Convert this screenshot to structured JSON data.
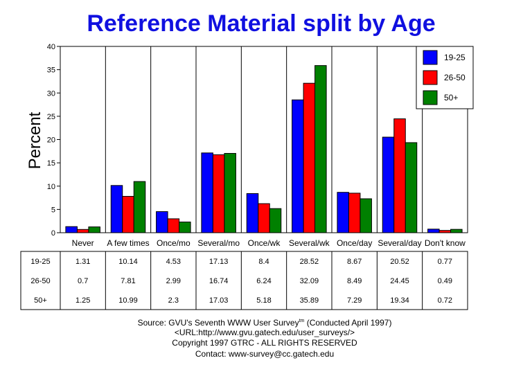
{
  "chart_data": {
    "type": "bar",
    "title": "Reference Material split by Age",
    "ylabel": "Percent",
    "xlabel": "",
    "ylim": [
      0,
      40
    ],
    "yticks": [
      0,
      5,
      10,
      15,
      20,
      25,
      30,
      35,
      40
    ],
    "grid": "vertical category separators",
    "legend_position": "top-right",
    "categories": [
      "Never",
      "A few times",
      "Once/mo",
      "Several/mo",
      "Once/wk",
      "Several/wk",
      "Once/day",
      "Several/day",
      "Don't know"
    ],
    "series": [
      {
        "name": "19-25",
        "color": "#0000ff",
        "values": [
          1.31,
          10.14,
          4.53,
          17.13,
          8.4,
          28.52,
          8.67,
          20.52,
          0.77
        ],
        "labels": [
          "1.31",
          "10.14",
          "4.53",
          "17.13",
          "8.4",
          "28.52",
          "8.67",
          "20.52",
          "0.77"
        ]
      },
      {
        "name": "26-50",
        "color": "#ff0000",
        "values": [
          0.7,
          7.81,
          2.99,
          16.74,
          6.24,
          32.09,
          8.49,
          24.45,
          0.49
        ],
        "labels": [
          "0.7",
          "7.81",
          "2.99",
          "16.74",
          "6.24",
          "32.09",
          "8.49",
          "24.45",
          "0.49"
        ]
      },
      {
        "name": "50+",
        "color": "#008000",
        "values": [
          1.25,
          10.99,
          2.3,
          17.03,
          5.18,
          35.89,
          7.29,
          19.34,
          0.72
        ],
        "labels": [
          "1.25",
          "10.99",
          "2.3",
          "17.03",
          "5.18",
          "35.89",
          "7.29",
          "19.34",
          "0.72"
        ]
      }
    ]
  },
  "footer": {
    "source_prefix": "Source: GVU's Seventh WWW User Survey",
    "source_tm": "tm",
    "source_suffix": " (Conducted April 1997)",
    "url": "<URL:http://www.gvu.gatech.edu/user_surveys/>",
    "copyright": "Copyright 1997 GTRC - ALL RIGHTS RESERVED",
    "contact": "Contact: www-survey@cc.gatech.edu"
  }
}
